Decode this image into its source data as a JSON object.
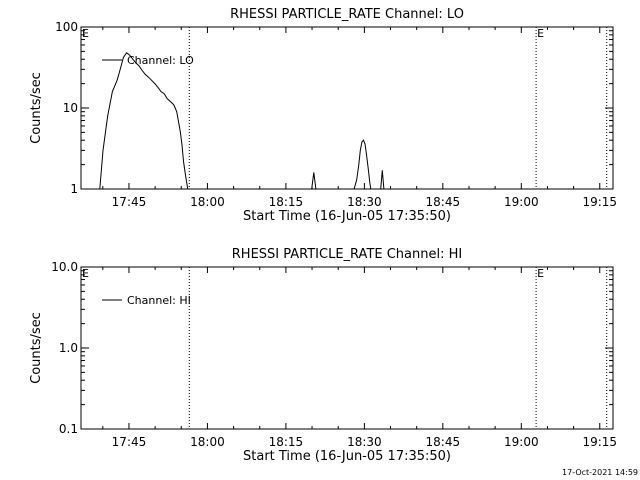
{
  "footer": {
    "timestamp": "17-Oct-2021 14:59"
  },
  "chart_data": [
    {
      "type": "line",
      "title": "RHESSI PARTICLE_RATE Channel: LO",
      "xlabel": "Start Time (16-Jun-05 17:35:50)",
      "ylabel": "Counts/sec",
      "x_unit": "minutes after 17:35:50",
      "xlim": [
        0,
        101.7
      ],
      "ylim": [
        1,
        100
      ],
      "y_scale": "log",
      "ytick_values": [
        1,
        10,
        100
      ],
      "ytick_labels": [
        "1",
        "10",
        "100"
      ],
      "xtick_values": [
        9.17,
        24.17,
        39.17,
        54.17,
        69.17,
        84.17,
        99.17
      ],
      "xtick_labels": [
        "17:45",
        "18:00",
        "18:15",
        "18:30",
        "18:45",
        "19:00",
        "19:15"
      ],
      "vertical_markers": [
        {
          "x": 20.7,
          "label": ""
        },
        {
          "x": 87.0,
          "label": "E"
        },
        {
          "x": 100.5,
          "label": ""
        }
      ],
      "corner_marker": "E",
      "legend": {
        "labels": [
          "Channel: LO"
        ],
        "position": "top-left"
      },
      "grid": false,
      "series": [
        {
          "name": "Channel: LO",
          "segments": [
            [
              [
                3.6,
                1
              ],
              [
                4.2,
                3
              ],
              [
                5.1,
                8
              ],
              [
                6.0,
                16
              ],
              [
                6.9,
                22
              ],
              [
                7.5,
                30
              ],
              [
                8.1,
                42
              ],
              [
                8.7,
                48
              ],
              [
                9.3,
                45
              ],
              [
                9.9,
                40
              ],
              [
                10.5,
                36
              ],
              [
                11.1,
                33
              ],
              [
                11.7,
                29
              ],
              [
                12.3,
                26
              ],
              [
                12.9,
                24
              ],
              [
                13.5,
                22
              ],
              [
                14.1,
                20
              ],
              [
                14.7,
                18
              ],
              [
                15.3,
                16
              ],
              [
                15.9,
                15
              ],
              [
                16.5,
                13
              ],
              [
                17.1,
                12
              ],
              [
                17.7,
                11
              ],
              [
                18.0,
                10
              ],
              [
                18.3,
                9
              ],
              [
                18.6,
                7
              ],
              [
                19.0,
                5
              ],
              [
                19.3,
                3.5
              ],
              [
                19.6,
                2.2
              ],
              [
                19.9,
                1.6
              ],
              [
                20.2,
                1.2
              ],
              [
                20.4,
                1
              ]
            ],
            [
              [
                44.1,
                1
              ],
              [
                44.5,
                1.6
              ],
              [
                44.9,
                1
              ]
            ],
            [
              [
                52.2,
                1
              ],
              [
                52.7,
                1.3
              ],
              [
                53.1,
                2
              ],
              [
                53.4,
                3
              ],
              [
                53.7,
                3.8
              ],
              [
                54.0,
                4
              ],
              [
                54.3,
                3.6
              ],
              [
                54.6,
                2.6
              ],
              [
                54.9,
                1.8
              ],
              [
                55.2,
                1.2
              ],
              [
                55.4,
                1
              ]
            ],
            [
              [
                57.3,
                1
              ],
              [
                57.6,
                1.7
              ],
              [
                57.9,
                1
              ]
            ]
          ]
        }
      ]
    },
    {
      "type": "line",
      "title": "RHESSI PARTICLE_RATE Channel: HI",
      "xlabel": "Start Time (16-Jun-05 17:35:50)",
      "ylabel": "Counts/sec",
      "x_unit": "minutes after 17:35:50",
      "xlim": [
        0,
        101.7
      ],
      "ylim": [
        0.1,
        10
      ],
      "y_scale": "log",
      "ytick_values": [
        0.1,
        1,
        10
      ],
      "ytick_labels": [
        "0.1",
        "1.0",
        "10.0"
      ],
      "xtick_values": [
        9.17,
        24.17,
        39.17,
        54.17,
        69.17,
        84.17,
        99.17
      ],
      "xtick_labels": [
        "17:45",
        "18:00",
        "18:15",
        "18:30",
        "18:45",
        "19:00",
        "19:15"
      ],
      "vertical_markers": [
        {
          "x": 20.7,
          "label": ""
        },
        {
          "x": 87.0,
          "label": "E"
        },
        {
          "x": 100.5,
          "label": ""
        }
      ],
      "corner_marker": "E",
      "legend": {
        "labels": [
          "Channel: HI"
        ],
        "position": "top-left"
      },
      "grid": false,
      "series": [
        {
          "name": "Channel: HI",
          "segments": []
        }
      ]
    }
  ]
}
